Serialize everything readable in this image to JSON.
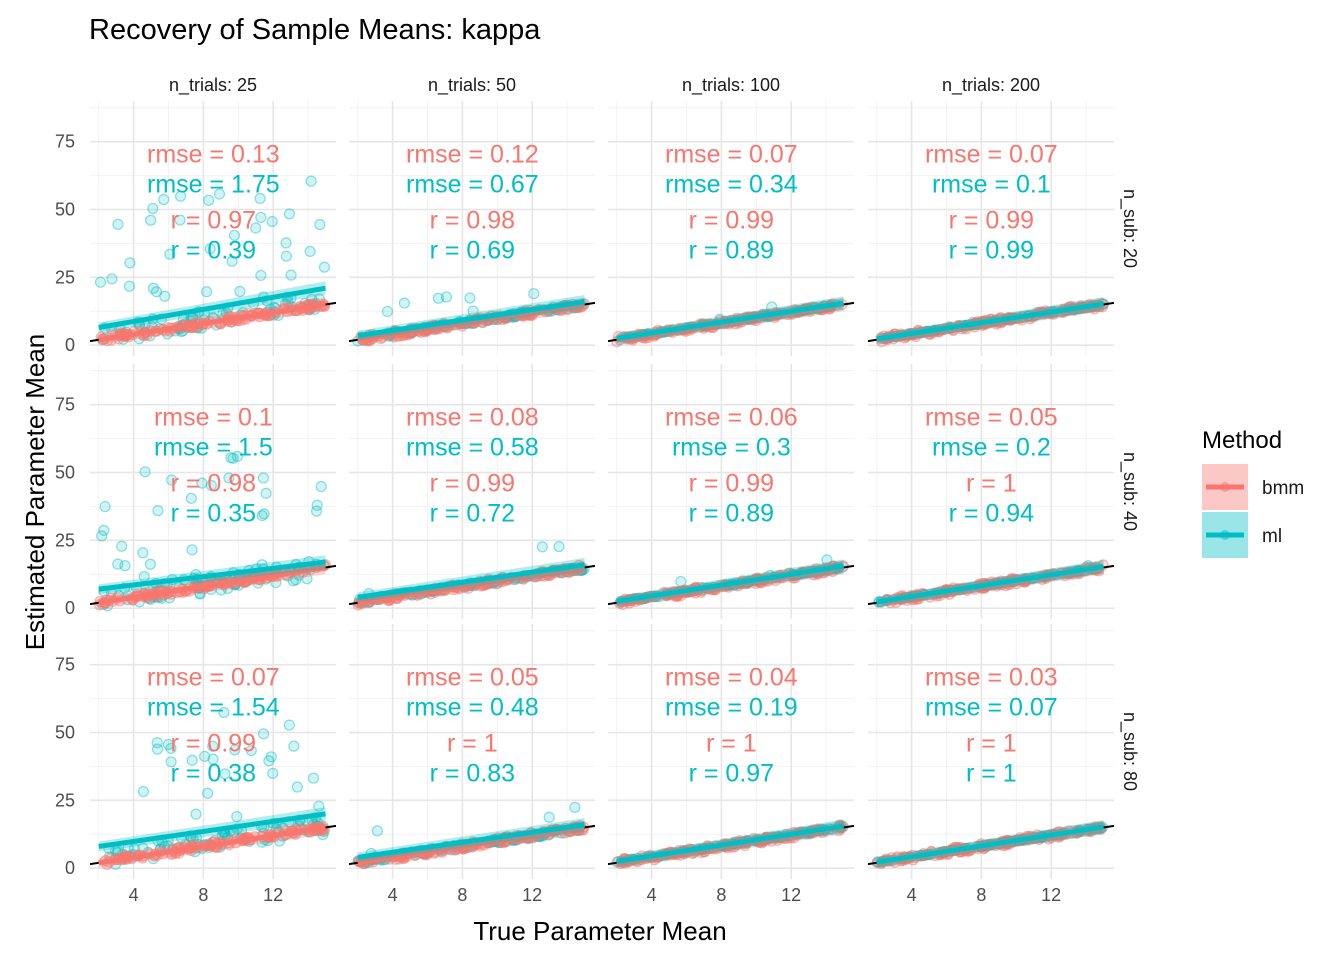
{
  "chart_data": {
    "type": "scatter",
    "title": "Recovery of Sample Means: kappa",
    "xlabel": "True Parameter Mean",
    "ylabel": "Estimated Parameter Mean",
    "xlim": [
      1.5,
      15.6
    ],
    "ylim": [
      -4,
      90
    ],
    "x_ticks": [
      4,
      8,
      12
    ],
    "y_ticks": [
      0,
      25,
      50,
      75
    ],
    "grid": true,
    "legend_position": "right",
    "legend": {
      "title": "Method",
      "items": [
        {
          "name": "bmm",
          "color": "#F8766D"
        },
        {
          "name": "ml",
          "color": "#00BFC4"
        }
      ]
    },
    "col_facets": [
      "n_trials: 25",
      "n_trials: 50",
      "n_trials: 100",
      "n_trials: 200"
    ],
    "row_facets": [
      "n_sub: 20",
      "n_sub: 40",
      "n_sub: 80"
    ],
    "reference_line": {
      "slope": 1,
      "intercept": 0
    },
    "panels": [
      {
        "row": 0,
        "col": 0,
        "bmm": {
          "rmse": "rmse = 0.13",
          "r": "r = 0.97",
          "fit": [
            [
              2,
              2
            ],
            [
              15,
              15
            ]
          ]
        },
        "ml": {
          "rmse": "rmse = 1.75",
          "r": "r = 0.39",
          "fit": [
            [
              2,
              6.5
            ],
            [
              15,
              21
            ]
          ]
        }
      },
      {
        "row": 0,
        "col": 1,
        "bmm": {
          "rmse": "rmse = 0.12",
          "r": "r = 0.98",
          "fit": [
            [
              2,
              2
            ],
            [
              15,
              15
            ]
          ]
        },
        "ml": {
          "rmse": "rmse = 0.67",
          "r": "r = 0.69",
          "fit": [
            [
              2,
              3.5
            ],
            [
              15,
              16
            ]
          ]
        }
      },
      {
        "row": 0,
        "col": 2,
        "bmm": {
          "rmse": "rmse = 0.07",
          "r": "r = 0.99",
          "fit": [
            [
              2,
              2
            ],
            [
              15,
              15
            ]
          ]
        },
        "ml": {
          "rmse": "rmse = 0.34",
          "r": "r = 0.89",
          "fit": [
            [
              2,
              2.5
            ],
            [
              15,
              15.5
            ]
          ]
        }
      },
      {
        "row": 0,
        "col": 3,
        "bmm": {
          "rmse": "rmse = 0.07",
          "r": "r = 0.99",
          "fit": [
            [
              2,
              2
            ],
            [
              15,
              15
            ]
          ]
        },
        "ml": {
          "rmse": "rmse = 0.1",
          "r": "r = 0.99",
          "fit": [
            [
              2,
              2.3
            ],
            [
              15,
              15.2
            ]
          ]
        }
      },
      {
        "row": 1,
        "col": 0,
        "bmm": {
          "rmse": "rmse = 0.1",
          "r": "r = 0.98",
          "fit": [
            [
              2,
              2
            ],
            [
              15,
              15
            ]
          ]
        },
        "ml": {
          "rmse": "rmse = 1.5",
          "r": "r = 0.35",
          "fit": [
            [
              2,
              7
            ],
            [
              15,
              17
            ]
          ]
        }
      },
      {
        "row": 1,
        "col": 1,
        "bmm": {
          "rmse": "rmse = 0.08",
          "r": "r = 0.99",
          "fit": [
            [
              2,
              2
            ],
            [
              15,
              15
            ]
          ]
        },
        "ml": {
          "rmse": "rmse = 0.58",
          "r": "r = 0.72",
          "fit": [
            [
              2,
              4
            ],
            [
              15,
              16
            ]
          ]
        }
      },
      {
        "row": 1,
        "col": 2,
        "bmm": {
          "rmse": "rmse = 0.06",
          "r": "r = 0.99",
          "fit": [
            [
              2,
              2
            ],
            [
              15,
              15
            ]
          ]
        },
        "ml": {
          "rmse": "rmse = 0.3",
          "r": "r = 0.89",
          "fit": [
            [
              2,
              2.5
            ],
            [
              15,
              15.5
            ]
          ]
        }
      },
      {
        "row": 1,
        "col": 3,
        "bmm": {
          "rmse": "rmse = 0.05",
          "r": "r = 1",
          "fit": [
            [
              2,
              2
            ],
            [
              15,
              15
            ]
          ]
        },
        "ml": {
          "rmse": "rmse = 0.2",
          "r": "r = 0.94",
          "fit": [
            [
              2,
              2.3
            ],
            [
              15,
              15.3
            ]
          ]
        }
      },
      {
        "row": 2,
        "col": 0,
        "bmm": {
          "rmse": "rmse = 0.07",
          "r": "r = 0.99",
          "fit": [
            [
              2,
              2
            ],
            [
              15,
              15
            ]
          ]
        },
        "ml": {
          "rmse": "rmse = 1.54",
          "r": "r = 0.38",
          "fit": [
            [
              2,
              8
            ],
            [
              15,
              20
            ]
          ]
        }
      },
      {
        "row": 2,
        "col": 1,
        "bmm": {
          "rmse": "rmse = 0.05",
          "r": "r = 1",
          "fit": [
            [
              2,
              2
            ],
            [
              15,
              15
            ]
          ]
        },
        "ml": {
          "rmse": "rmse = 0.48",
          "r": "r = 0.83",
          "fit": [
            [
              2,
              4
            ],
            [
              15,
              16
            ]
          ]
        }
      },
      {
        "row": 2,
        "col": 2,
        "bmm": {
          "rmse": "rmse = 0.04",
          "r": "r = 1",
          "fit": [
            [
              2,
              2
            ],
            [
              15,
              15
            ]
          ]
        },
        "ml": {
          "rmse": "rmse = 0.19",
          "r": "r = 0.97",
          "fit": [
            [
              2,
              2.5
            ],
            [
              15,
              15.5
            ]
          ]
        }
      },
      {
        "row": 2,
        "col": 3,
        "bmm": {
          "rmse": "rmse = 0.03",
          "r": "r = 1",
          "fit": [
            [
              2,
              2
            ],
            [
              15,
              15
            ]
          ]
        },
        "ml": {
          "rmse": "rmse = 0.07",
          "r": "r = 1",
          "fit": [
            [
              2,
              2.2
            ],
            [
              15,
              15.2
            ]
          ]
        }
      }
    ]
  }
}
